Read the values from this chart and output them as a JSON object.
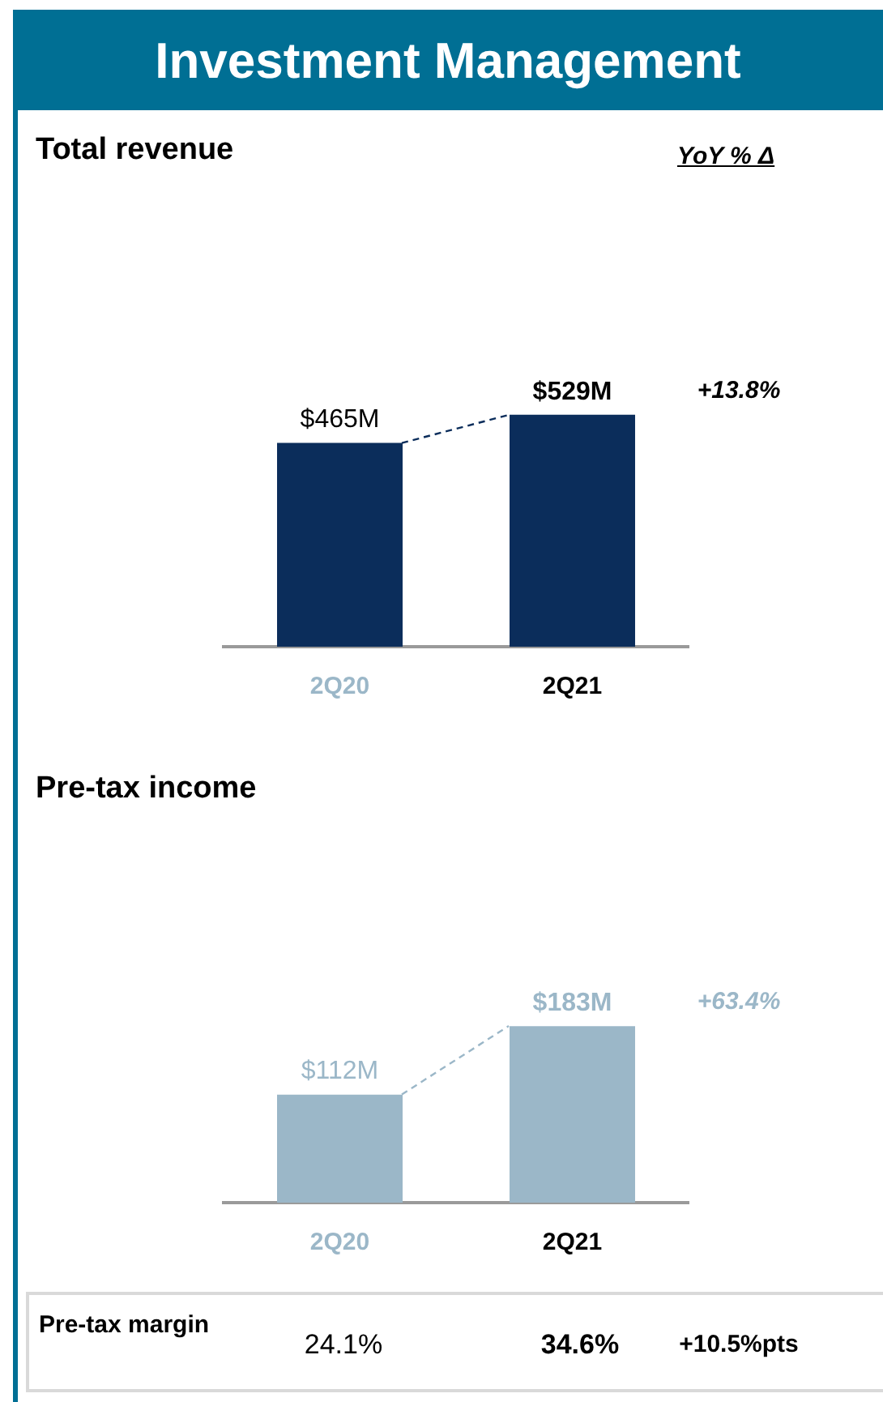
{
  "chart_data": [
    {
      "type": "bar",
      "title": "Investment Management",
      "subtitle": "Total revenue",
      "categories": [
        "2Q20",
        "2Q21"
      ],
      "series": [
        {
          "type": "bar",
          "color": "#0b2d5b",
          "values": [
            465,
            529
          ],
          "value_labels": [
            "$465M",
            "$529M"
          ]
        }
      ],
      "tick_labels": "x",
      "grid": false,
      "legend": false,
      "annotations": [
        "YoY % Δ",
        "+13.8%"
      ]
    },
    {
      "type": "bar",
      "title": "Pre-tax income",
      "categories": [
        "2Q20",
        "2Q21"
      ],
      "series": [
        {
          "type": "bar",
          "color": "#9bb7c8",
          "values": [
            112,
            183
          ],
          "value_labels": [
            "$112M",
            "$183M"
          ]
        }
      ],
      "tick_labels": "x",
      "grid": false,
      "legend": false,
      "annotations": [
        "+63.4%"
      ]
    },
    {
      "type": "other",
      "title": "Pre-tax margin",
      "annotations": [
        "24.1%",
        "34.6%",
        "+10.5%pts"
      ]
    }
  ]
}
